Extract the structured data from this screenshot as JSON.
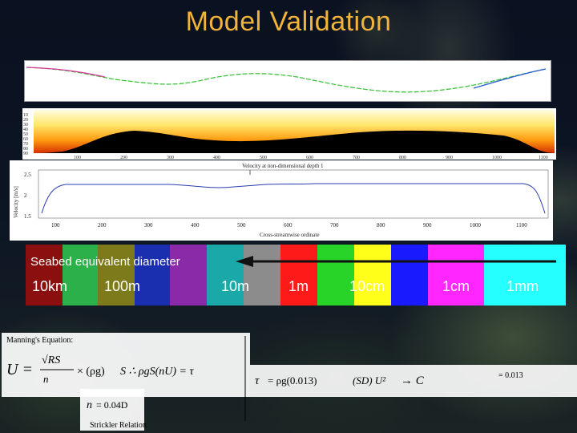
{
  "title": "Model Validation",
  "panel1": {
    "description_colors": [
      "#d9369a",
      "#3ec23e",
      "#2a5bd6",
      "#8a3dd0"
    ]
  },
  "panel2": {
    "y_ticks": [
      "10",
      "20",
      "30",
      "40",
      "50",
      "60",
      "70",
      "80",
      "90"
    ],
    "x_ticks": [
      "100",
      "200",
      "300",
      "400",
      "500",
      "600",
      "700",
      "800",
      "900",
      "1000",
      "1100"
    ]
  },
  "panel3": {
    "title": "Velocity at non-dimensional depth 1",
    "ylabel": "Velocity [m/s]",
    "xlabel": "Cross-streamwise ordinate",
    "y_ticks": [
      "2.5",
      "2",
      "1.5"
    ],
    "x_ticks": [
      "100",
      "200",
      "300",
      "400",
      "500",
      "600",
      "700",
      "800",
      "900",
      "1000",
      "1100"
    ]
  },
  "seabed": {
    "label": "Seabed equivalent diameter",
    "sizes": [
      "10km",
      "100m",
      "10m",
      "1m",
      "10cm",
      "1cm",
      "1mm"
    ],
    "band_colors": [
      "#8c0f0f",
      "#2bb04a",
      "#7c7a1a",
      "#1a2fb0",
      "#8a2aa8",
      "#1aa8a8",
      "#8c8c8c",
      "#ff1a1a",
      "#29d429",
      "#ffff1a",
      "#1a1aff",
      "#ff26ff",
      "#26ffff"
    ]
  },
  "formulas": {
    "manning_label": "Manning's Equation:",
    "strickler_label": "Strickler Relation",
    "manning_rhs": "× (ρg)",
    "n_rough": "n",
    "n_rough_val": "= 0.04D",
    "tau_rough": "τ",
    "tau_rough_val": "= ρg(0.013)",
    "cf": "→ C",
    "cf_val": "= 0.013"
  }
}
